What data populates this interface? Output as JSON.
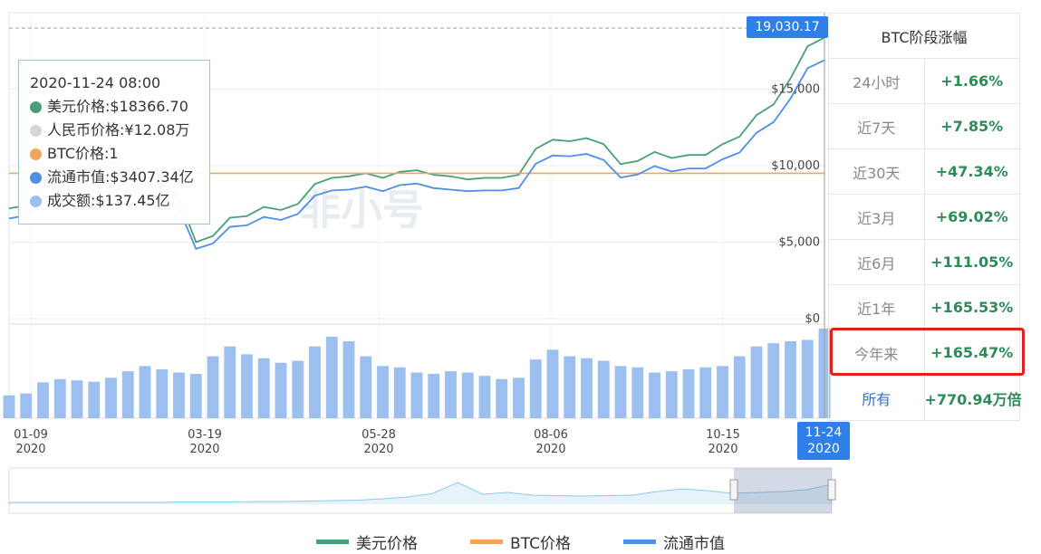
{
  "tooltip": {
    "datetime": "2020-11-24 08:00",
    "rows": [
      {
        "text": "美元价格:$18366.70",
        "color": "#4a9e7a"
      },
      {
        "text": "人民币价格:¥12.08万",
        "color": "#d6d6d6"
      },
      {
        "text": "BTC价格:1",
        "color": "#f2a45c"
      },
      {
        "text": "流通市值:$3407.34亿",
        "color": "#4f8fe6"
      },
      {
        "text": "成交额:$137.45亿",
        "color": "#9dbff0"
      }
    ]
  },
  "price_flag": "19,030.17",
  "date_flag": {
    "date": "11-24",
    "year": "2020"
  },
  "watermark": "非小号",
  "stats": {
    "title": "BTC阶段涨幅",
    "rows": [
      {
        "label": "24小时",
        "value": "+1.66%"
      },
      {
        "label": "近7天",
        "value": "+7.85%"
      },
      {
        "label": "近30天",
        "value": "+47.34%"
      },
      {
        "label": "近3月",
        "value": "+69.02%"
      },
      {
        "label": "近6月",
        "value": "+111.05%"
      },
      {
        "label": "近1年",
        "value": "+165.53%"
      },
      {
        "label": "今年来",
        "value": "+165.47%"
      },
      {
        "label": "所有",
        "value": "+770.94万倍"
      }
    ]
  },
  "legend": [
    {
      "label": "美元价格",
      "color": "#4a9e7a"
    },
    {
      "label": "BTC价格",
      "color": "#f2a45c"
    },
    {
      "label": "流通市值",
      "color": "#4f8fe6"
    }
  ],
  "chart_data": {
    "type": "line",
    "y_ticks": [
      "$0",
      "$5,000",
      "$10,000",
      "$15,000"
    ],
    "ylim": [
      0,
      20000
    ],
    "x_ticks": [
      {
        "date": "01-09",
        "year": "2020"
      },
      {
        "date": "03-19",
        "year": "2020"
      },
      {
        "date": "05-28",
        "year": "2020"
      },
      {
        "date": "08-06",
        "year": "2020"
      },
      {
        "date": "10-15",
        "year": "2020"
      }
    ],
    "x": [
      "01-01",
      "01-08",
      "01-15",
      "01-22",
      "01-29",
      "02-05",
      "02-12",
      "02-19",
      "02-26",
      "03-04",
      "03-11",
      "03-12",
      "03-18",
      "03-25",
      "04-01",
      "04-08",
      "04-15",
      "04-22",
      "04-29",
      "05-06",
      "05-13",
      "05-20",
      "05-27",
      "06-03",
      "06-10",
      "06-17",
      "06-24",
      "07-01",
      "07-08",
      "07-15",
      "07-22",
      "07-29",
      "08-05",
      "08-12",
      "08-19",
      "08-26",
      "09-02",
      "09-09",
      "09-16",
      "09-23",
      "09-30",
      "10-07",
      "10-14",
      "10-21",
      "10-28",
      "11-04",
      "11-11",
      "11-18",
      "11-24"
    ],
    "series": [
      {
        "name": "美元价格",
        "color": "#4a9e7a",
        "values": [
          7200,
          7400,
          8700,
          8500,
          9300,
          9700,
          10300,
          9700,
          8700,
          8800,
          7900,
          5000,
          5400,
          6600,
          6700,
          7300,
          7100,
          7500,
          8800,
          9200,
          9300,
          9500,
          9200,
          9600,
          9700,
          9400,
          9300,
          9100,
          9200,
          9200,
          9400,
          11100,
          11700,
          11600,
          11800,
          11400,
          10100,
          10300,
          10900,
          10500,
          10700,
          10700,
          11400,
          11900,
          13300,
          14000,
          15700,
          17800,
          18366.7
        ]
      },
      {
        "name": "BTC价格",
        "color": "#f2a45c",
        "values": [
          9500,
          9500,
          9500,
          9500,
          9500,
          9500,
          9500,
          9500,
          9500,
          9500,
          9500,
          9500,
          9500,
          9500,
          9500,
          9500,
          9500,
          9500,
          9500,
          9500,
          9500,
          9500,
          9500,
          9500,
          9500,
          9500,
          9500,
          9500,
          9500,
          9500,
          9500,
          9500,
          9500,
          9500,
          9500,
          9500,
          9500,
          9500,
          9500,
          9500,
          9500,
          9500,
          9500,
          9500,
          9500,
          9500,
          9500,
          9500,
          9500
        ]
      },
      {
        "name": "流通市值",
        "color": "#4f8fe6",
        "values": [
          1320,
          1360,
          1600,
          1560,
          1700,
          1780,
          1880,
          1770,
          1600,
          1620,
          1450,
          920,
          990,
          1210,
          1230,
          1340,
          1300,
          1380,
          1620,
          1690,
          1700,
          1740,
          1680,
          1760,
          1780,
          1720,
          1700,
          1680,
          1690,
          1690,
          1720,
          2040,
          2150,
          2140,
          2170,
          2090,
          1860,
          1900,
          2010,
          1940,
          1980,
          1980,
          2100,
          2190,
          2450,
          2590,
          2900,
          3300,
          3407.34
        ]
      }
    ],
    "volume": {
      "name": "成交额",
      "color": "#9dbff0",
      "values": [
        35,
        38,
        55,
        60,
        58,
        56,
        62,
        72,
        80,
        75,
        70,
        68,
        95,
        110,
        98,
        92,
        85,
        88,
        110,
        125,
        118,
        95,
        80,
        78,
        70,
        68,
        72,
        70,
        65,
        60,
        62,
        90,
        105,
        95,
        92,
        88,
        80,
        78,
        70,
        72,
        75,
        78,
        80,
        95,
        110,
        115,
        118,
        120,
        137.45
      ]
    }
  }
}
